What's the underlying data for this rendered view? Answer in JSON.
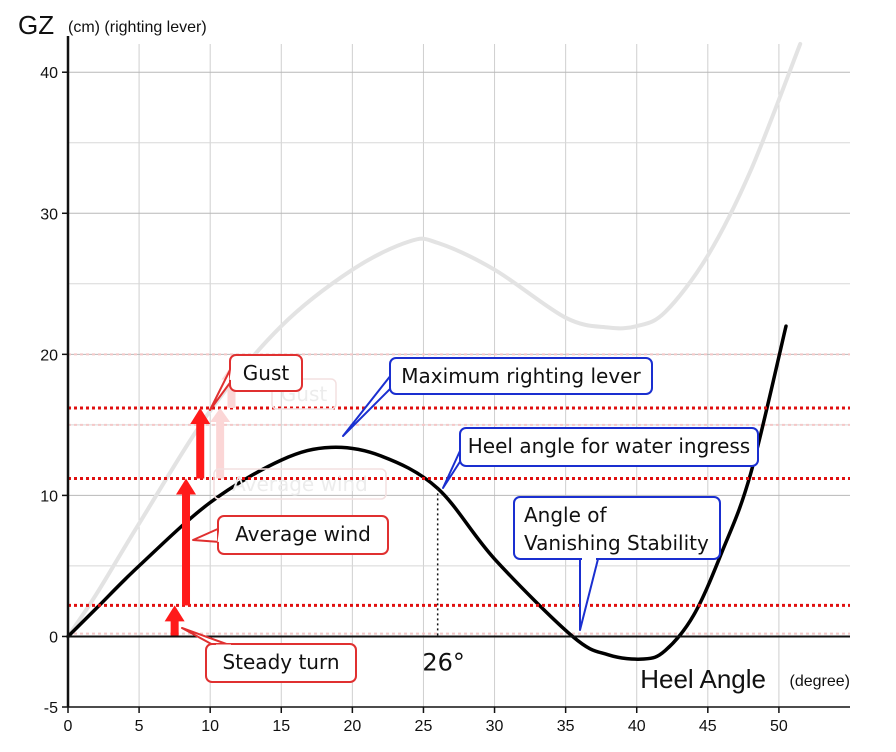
{
  "chart_data": {
    "type": "line",
    "title": "",
    "ylabel_main": "GZ",
    "ylabel_sub": "(cm) (righting lever)",
    "xlabel_main": "Heel Angle",
    "xlabel_sub": "(degree)",
    "xlim": [
      0,
      55
    ],
    "ylim": [
      -5,
      42
    ],
    "x_ticks": [
      0,
      5,
      10,
      15,
      20,
      25,
      30,
      35,
      40,
      45,
      50
    ],
    "y_ticks": [
      -5,
      0,
      10,
      20,
      30,
      40
    ],
    "series": [
      {
        "color": "#e3e3e3",
        "x": [
          0,
          2,
          5,
          10,
          15,
          20,
          24,
          26,
          30,
          35,
          38,
          40,
          42,
          45,
          48,
          51.5
        ],
        "y": [
          0,
          3,
          8,
          16,
          22,
          26,
          28,
          27.9,
          26,
          22.6,
          21.9,
          22,
          23,
          27,
          33,
          42
        ]
      },
      {
        "color": "#000000",
        "x": [
          0,
          2,
          5,
          10,
          15,
          18.5,
          22,
          26,
          30,
          35.5,
          38,
          40.5,
          42,
          44,
          46,
          48,
          50.5
        ],
        "y": [
          0,
          2,
          5,
          9.5,
          12.5,
          13.4,
          12.8,
          10.5,
          5.5,
          0,
          -1.3,
          -1.6,
          -1,
          1.5,
          6,
          11.5,
          22
        ]
      }
    ],
    "thresholds": [
      {
        "y": 16.2,
        "color": "#e01010"
      },
      {
        "y": 11.2,
        "color": "#e01010"
      },
      {
        "y": 2.2,
        "color": "#e01010"
      }
    ],
    "faint_thresholds": [
      0.2,
      15.0,
      20.0
    ],
    "marker": {
      "x": 26,
      "label": "26°"
    },
    "forces": [
      {
        "x": 7.5,
        "y0": 0,
        "y1": 2.2,
        "color": "#ff1a1a"
      },
      {
        "x": 8.3,
        "y0": 2.2,
        "y1": 11.2,
        "color": "#ff1a1a"
      },
      {
        "x": 9.3,
        "y0": 11.2,
        "y1": 16.2,
        "color": "#ff1a1a"
      }
    ],
    "annotations": [
      {
        "text": "Gust",
        "style": "red"
      },
      {
        "text": "Average wind",
        "style": "red"
      },
      {
        "text": "Steady turn",
        "style": "red"
      },
      {
        "text": "Maximum righting lever",
        "style": "blue"
      },
      {
        "text": "Heel angle for water ingress",
        "style": "blue"
      },
      {
        "text": "Angle of",
        "style": "blue"
      },
      {
        "text": "Vanishing Stability",
        "style": "blue"
      }
    ],
    "ghost_annotations": [
      {
        "text": "Gust"
      },
      {
        "text": "Average wind"
      }
    ],
    "grid": true
  }
}
